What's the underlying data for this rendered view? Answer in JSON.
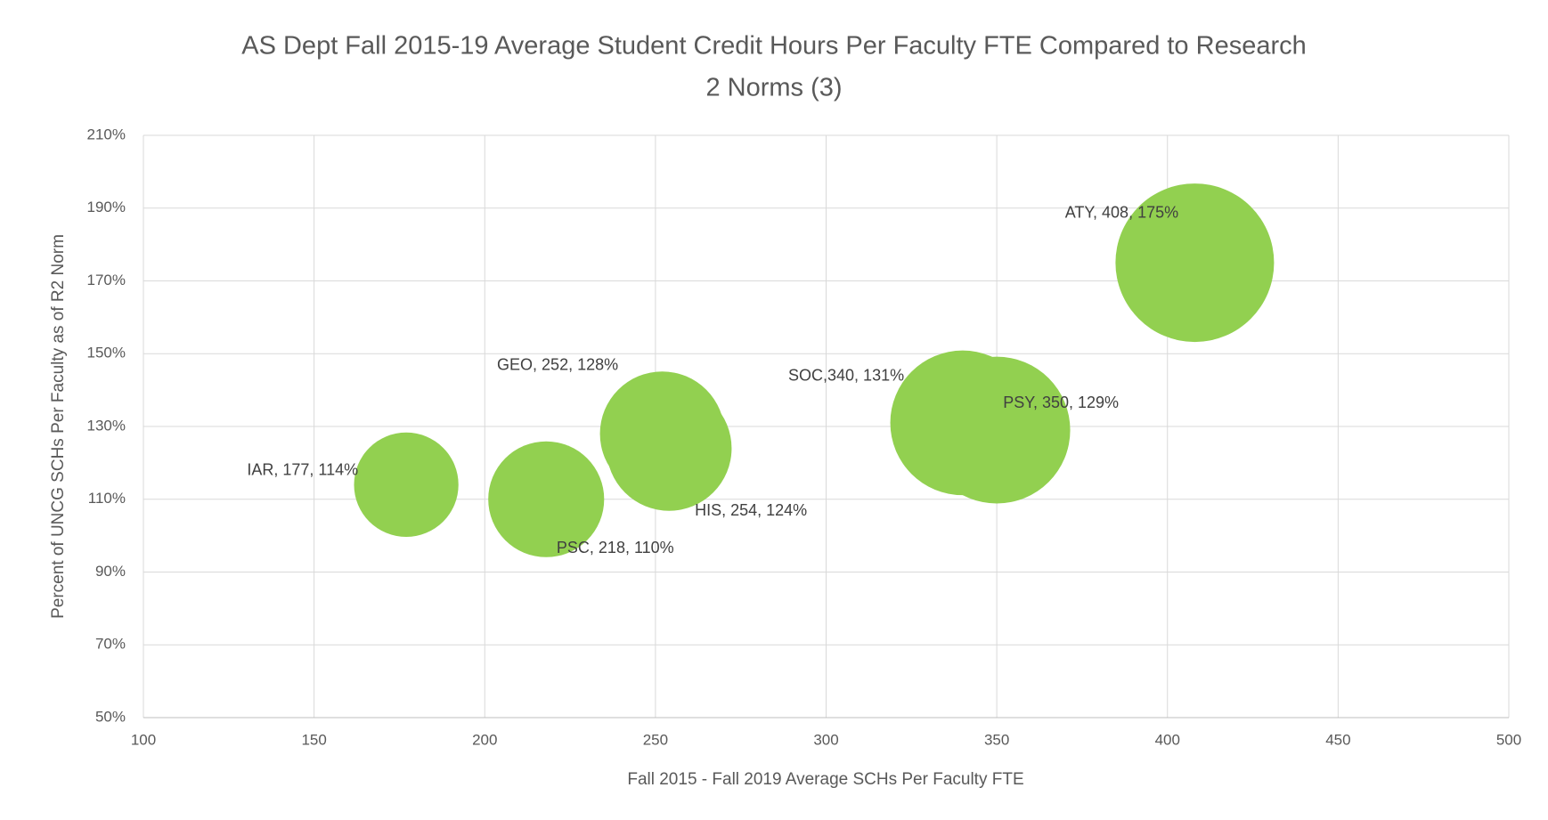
{
  "chart_data": {
    "type": "bubble",
    "title": [
      "AS Dept Fall 2015-19 Average Student Credit Hours Per Faculty FTE Compared to Research",
      "2 Norms (3)"
    ],
    "x_label": "Fall 2015 - Fall 2019 Average SCHs Per Faculty FTE",
    "y_label": "Percent of UNCG SCHs Per Faculty as of R2 Norm",
    "series": [
      {
        "color": "#92d050",
        "x": [
          177,
          218,
          252,
          254,
          340,
          350,
          408
        ],
        "values": [
          114,
          110,
          128,
          124,
          131,
          129,
          175
        ],
        "sizes": [
          177,
          218,
          252,
          254,
          340,
          350,
          408
        ],
        "value_labels": [
          "IAR, 177, 114%",
          "PSC, 218, 110%",
          "GEO, 252, 128%",
          "HIS, 254, 124%",
          "SOC,340, 131%",
          "PSY, 350, 129%",
          "ATY, 408, 175%"
        ]
      }
    ],
    "xlim": [
      100,
      500
    ],
    "xticks": [
      100,
      150,
      200,
      250,
      300,
      350,
      400,
      450,
      500
    ],
    "ylim": [
      50,
      210
    ],
    "yticks": [
      {
        "value": 50,
        "label": "50%"
      },
      {
        "value": 70,
        "label": "70%"
      },
      {
        "value": 90,
        "label": "90%"
      },
      {
        "value": 110,
        "label": "110%"
      },
      {
        "value": 130,
        "label": "130%"
      },
      {
        "value": 150,
        "label": "150%"
      },
      {
        "value": 170,
        "label": "170%"
      },
      {
        "value": 190,
        "label": "190%"
      },
      {
        "value": 210,
        "label": "210%"
      }
    ],
    "grid": true
  }
}
